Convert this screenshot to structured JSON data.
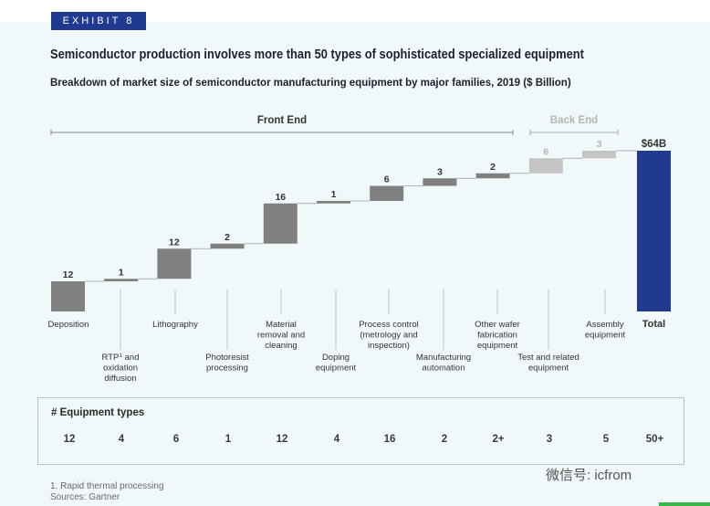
{
  "exhibit_label": "EXHIBIT 8",
  "title": "Semiconductor production involves more than 50 types of sophisticated specialized equipment",
  "subtitle": "Breakdown of market size of semiconductor manufacturing equipment by major families, 2019 ($ Billion)",
  "chart_data": {
    "type": "waterfall",
    "unit": "$ Billion",
    "front_end_label": "Front End",
    "back_end_label": "Back End",
    "categories": [
      {
        "label": "Deposition",
        "value": 12,
        "value_label": "12",
        "group": "front",
        "sup": "",
        "post": "",
        "equipment_types": "12"
      },
      {
        "label": "RTP",
        "sup": "1",
        "post": " and\noxidation\ndiffusion",
        "value": 1,
        "value_label": "1",
        "group": "front",
        "equipment_types": "4"
      },
      {
        "label": "Lithography",
        "value": 12,
        "value_label": "12",
        "group": "front",
        "sup": "",
        "post": "",
        "equipment_types": "6"
      },
      {
        "label": "Photoresist\nprocessing",
        "value": 2,
        "value_label": "2",
        "group": "front",
        "sup": "",
        "post": "",
        "equipment_types": "1"
      },
      {
        "label": "Material\nremoval and\ncleaning",
        "value": 16,
        "value_label": "16",
        "group": "front",
        "sup": "",
        "post": "",
        "equipment_types": "12"
      },
      {
        "label": "Doping\nequipment",
        "value": 1,
        "value_label": "1",
        "group": "front",
        "sup": "",
        "post": "",
        "equipment_types": "4"
      },
      {
        "label": "Process control\n(metrology and\ninspection)",
        "value": 6,
        "value_label": "6",
        "group": "front",
        "sup": "",
        "post": "",
        "equipment_types": "16"
      },
      {
        "label": "Manufacturing\nautomation",
        "value": 3,
        "value_label": "3",
        "group": "front",
        "sup": "",
        "post": "",
        "equipment_types": "2"
      },
      {
        "label": "Other wafer\nfabrication\nequipment",
        "value": 2,
        "value_label": "2",
        "group": "front",
        "sup": "",
        "post": "",
        "equipment_types": "2+"
      },
      {
        "label": "Test and related\nequipment",
        "value": 6,
        "value_label": "6",
        "group": "back",
        "sup": "",
        "post": "",
        "equipment_types": "3"
      },
      {
        "label": "Assembly\nequipment",
        "value": 3,
        "value_label": "3",
        "group": "back",
        "sup": "",
        "post": "",
        "equipment_types": "5"
      }
    ],
    "total": {
      "label": "Total",
      "value": 64,
      "value_label": "$64B",
      "equipment_types": "50+"
    },
    "colors": {
      "front": "#808080",
      "back": "#c4c4c4",
      "total": "#1f3a8f",
      "back_text": "#b5b5b5",
      "text": "#333333"
    }
  },
  "equipment_types": {
    "title": "# Equipment types"
  },
  "footnotes": [
    "1. Rapid thermal processing",
    "Sources: Gartner"
  ],
  "watermark": "微信号: icfrom"
}
